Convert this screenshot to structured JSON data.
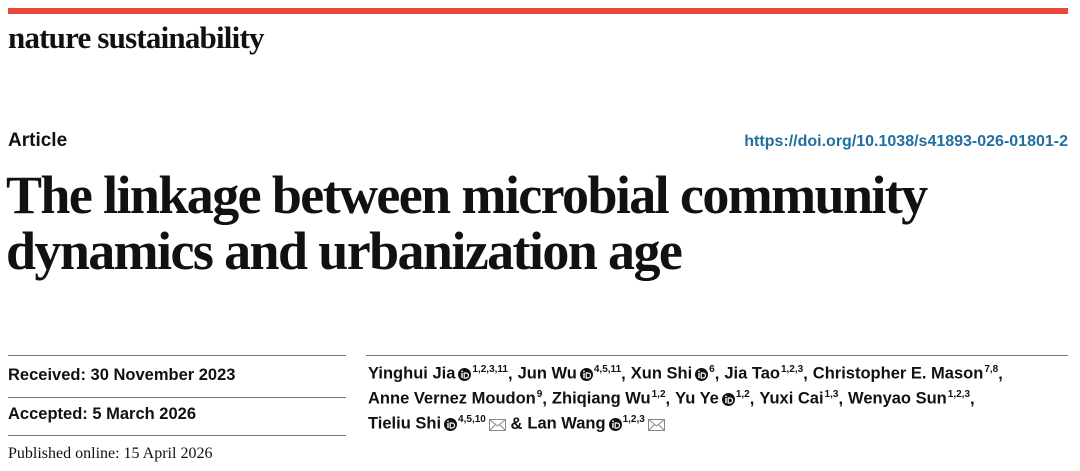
{
  "journal": "nature sustainability",
  "article_type": "Article",
  "doi": "https://doi.org/10.1038/s41893-026-01801-2",
  "title_lines": [
    "The linkage between microbial community",
    "dynamics and urbanization age"
  ],
  "dates": {
    "received": "Received: 30 November 2023",
    "accepted": "Accepted: 5 March 2026",
    "published": "Published online: 15 April 2026"
  },
  "author_lines": [
    [
      {
        "name": "Yinghui Jia",
        "orcid": true,
        "affiliations": "1,2,3,11",
        "separator": ","
      },
      {
        "name": "Jun Wu",
        "orcid": true,
        "affiliations": "4,5,11",
        "separator": ","
      },
      {
        "name": "Xun Shi",
        "orcid": true,
        "affiliations": "6",
        "separator": ","
      },
      {
        "name": "Jia Tao",
        "orcid": false,
        "affiliations": "1,2,3",
        "separator": ","
      },
      {
        "name": "Christopher E. Mason",
        "orcid": false,
        "affiliations": "7,8",
        "separator": ","
      }
    ],
    [
      {
        "name": "Anne Vernez Moudon",
        "orcid": false,
        "affiliations": "9",
        "separator": ","
      },
      {
        "name": "Zhiqiang Wu",
        "orcid": false,
        "affiliations": "1,2",
        "separator": ","
      },
      {
        "name": "Yu Ye",
        "orcid": true,
        "affiliations": "1,2",
        "separator": ","
      },
      {
        "name": "Yuxi Cai",
        "orcid": false,
        "affiliations": "1,3",
        "separator": ","
      },
      {
        "name": "Wenyao Sun",
        "orcid": false,
        "affiliations": "1,2,3",
        "separator": ","
      }
    ],
    [
      {
        "name": "Tieliu Shi",
        "orcid": true,
        "affiliations": "4,5,10",
        "corresponding": true
      },
      {
        "prefix": "&",
        "name": "Lan Wang",
        "orcid": true,
        "affiliations": "1,2,3",
        "corresponding": true
      }
    ]
  ]
}
